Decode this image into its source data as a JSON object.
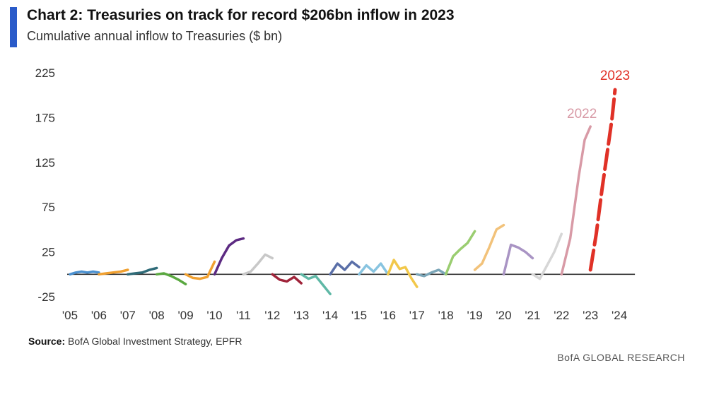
{
  "title": "Chart 2: Treasuries on track for record $206bn inflow in 2023",
  "subtitle": "Cumulative annual inflow to Treasuries ($ bn)",
  "source_label": "Source:",
  "source_text": "BofA Global Investment Strategy, EPFR",
  "brand": "BofA GLOBAL RESEARCH",
  "chart_data": {
    "type": "line",
    "ylim": [
      -25,
      225
    ],
    "yticks": [
      225,
      175,
      125,
      75,
      25,
      -25
    ],
    "xticks": [
      "'05",
      "'06",
      "'07",
      "'08",
      "'09",
      "'10",
      "'11",
      "'12",
      "'13",
      "'14",
      "'15",
      "'16",
      "'17",
      "'18",
      "'19",
      "'20",
      "'21",
      "'22",
      "'23",
      "'24"
    ],
    "zero_line": true,
    "annotations": [
      {
        "text": "2022",
        "color": "#d89aa6"
      },
      {
        "text": "2023",
        "color": "#e03127"
      }
    ],
    "series": [
      {
        "color": "#4a90d0",
        "x": [
          0,
          0.2,
          0.4,
          0.6,
          0.8,
          1.0
        ],
        "y": [
          0,
          2,
          3,
          2,
          3,
          2
        ]
      },
      {
        "color": "#f0a030",
        "x": [
          1.0,
          1.25,
          1.5,
          1.75,
          2.0
        ],
        "y": [
          0,
          1,
          2,
          3,
          5
        ]
      },
      {
        "color": "#2f6b78",
        "x": [
          2.0,
          2.25,
          2.5,
          2.75,
          3.0
        ],
        "y": [
          0,
          1,
          2,
          5,
          7
        ]
      },
      {
        "color": "#5aa840",
        "x": [
          3.0,
          3.25,
          3.5,
          3.75,
          4.0
        ],
        "y": [
          0,
          1,
          -2,
          -6,
          -11
        ]
      },
      {
        "color": "#f0a030",
        "x": [
          4.0,
          4.25,
          4.5,
          4.75,
          5.0
        ],
        "y": [
          0,
          -4,
          -5,
          -3,
          14
        ]
      },
      {
        "color": "#5c2a82",
        "x": [
          5.0,
          5.25,
          5.5,
          5.75,
          6.0
        ],
        "y": [
          0,
          18,
          32,
          38,
          40
        ]
      },
      {
        "color": "#c8c8c8",
        "x": [
          6.0,
          6.25,
          6.5,
          6.75,
          7.0
        ],
        "y": [
          0,
          3,
          12,
          22,
          18
        ]
      },
      {
        "color": "#a0243a",
        "x": [
          7.0,
          7.25,
          7.5,
          7.75,
          8.0
        ],
        "y": [
          0,
          -6,
          -8,
          -3,
          -10
        ]
      },
      {
        "color": "#5fb8a6",
        "x": [
          8.0,
          8.25,
          8.5,
          8.75,
          9.0
        ],
        "y": [
          0,
          -5,
          -2,
          -12,
          -22
        ]
      },
      {
        "color": "#5a6fa8",
        "x": [
          9.0,
          9.25,
          9.5,
          9.75,
          10.0
        ],
        "y": [
          0,
          12,
          5,
          14,
          8
        ]
      },
      {
        "color": "#88c4e0",
        "x": [
          10.0,
          10.25,
          10.5,
          10.75,
          11.0
        ],
        "y": [
          0,
          10,
          3,
          12,
          0
        ]
      },
      {
        "color": "#f2c84a",
        "x": [
          11.0,
          11.2,
          11.4,
          11.6,
          11.8,
          12.0
        ],
        "y": [
          0,
          16,
          6,
          8,
          -4,
          -14
        ]
      },
      {
        "color": "#7ba6b8",
        "x": [
          12.0,
          12.25,
          12.5,
          12.75,
          13.0
        ],
        "y": [
          0,
          -2,
          2,
          5,
          0
        ]
      },
      {
        "color": "#9acd70",
        "x": [
          13.0,
          13.25,
          13.5,
          13.75,
          14.0
        ],
        "y": [
          0,
          20,
          28,
          35,
          48
        ]
      },
      {
        "color": "#f2c27a",
        "x": [
          14.0,
          14.25,
          14.5,
          14.75,
          15.0
        ],
        "y": [
          5,
          12,
          30,
          50,
          55
        ]
      },
      {
        "color": "#a994c4",
        "x": [
          15.0,
          15.25,
          15.5,
          15.75,
          16.0
        ],
        "y": [
          0,
          33,
          30,
          25,
          18
        ]
      },
      {
        "color": "#d6d6d6",
        "x": [
          16.0,
          16.25,
          16.5,
          16.75,
          17.0
        ],
        "y": [
          0,
          -5,
          10,
          25,
          45
        ]
      },
      {
        "color": "#d89aa6",
        "x": [
          17.0,
          17.3,
          17.6,
          17.8,
          18.0
        ],
        "y": [
          0,
          40,
          110,
          150,
          165
        ]
      },
      {
        "color": "#e03127",
        "dashed": true,
        "x": [
          18.0,
          18.2,
          18.4,
          18.6,
          18.75,
          18.85
        ],
        "y": [
          5,
          45,
          95,
          140,
          175,
          206
        ]
      }
    ]
  }
}
